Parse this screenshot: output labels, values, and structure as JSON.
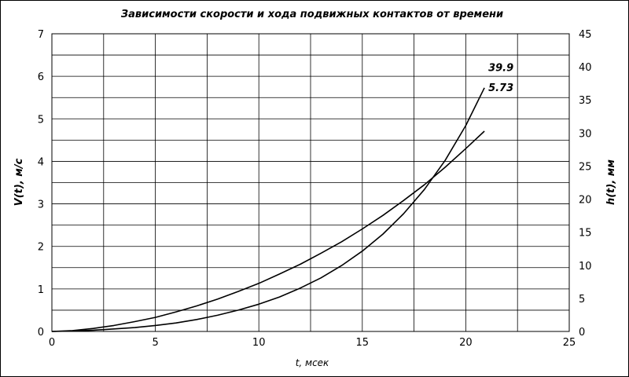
{
  "chart_data": {
    "type": "line",
    "title": "Зависимости скорости и хода подвижных контактов от времени",
    "xlabel": "t, мсек",
    "ylabel": "V(t), м/с",
    "y2label": "h(t), мм",
    "xlim": [
      0,
      25
    ],
    "ylim": [
      0,
      7
    ],
    "y2lim": [
      0,
      45
    ],
    "xticks": [
      0,
      5,
      10,
      15,
      20,
      25
    ],
    "yticks": [
      0,
      1,
      2,
      3,
      4,
      5,
      6,
      7
    ],
    "y2ticks": [
      0,
      5,
      10,
      15,
      20,
      25,
      30,
      35,
      40,
      45
    ],
    "grid": true,
    "series": [
      {
        "axis": "left",
        "x": [
          0,
          1,
          2,
          3,
          4,
          5,
          6,
          7,
          8,
          9,
          10,
          11,
          12,
          13,
          14,
          15,
          16,
          17,
          18,
          19,
          20,
          20.9
        ],
        "values": [
          0,
          0.02,
          0.07,
          0.14,
          0.23,
          0.33,
          0.46,
          0.6,
          0.76,
          0.94,
          1.13,
          1.35,
          1.58,
          1.84,
          2.11,
          2.41,
          2.73,
          3.08,
          3.45,
          3.86,
          4.3,
          4.71
        ]
      },
      {
        "axis": "left",
        "x": [
          0,
          1,
          2,
          3,
          4,
          5,
          6,
          7,
          8,
          9,
          10,
          11,
          12,
          13,
          14,
          15,
          16,
          17,
          18,
          19,
          20,
          20.9
        ],
        "values": [
          0,
          0.01,
          0.03,
          0.06,
          0.09,
          0.14,
          0.2,
          0.28,
          0.38,
          0.5,
          0.64,
          0.81,
          1.02,
          1.26,
          1.55,
          1.89,
          2.29,
          2.77,
          3.34,
          4.02,
          4.84,
          5.73
        ]
      }
    ],
    "annotations": [
      {
        "text": "39.9",
        "x": 20.9,
        "y": 6.2
      },
      {
        "text": "5.73",
        "x": 20.9,
        "y": 5.73
      }
    ]
  }
}
